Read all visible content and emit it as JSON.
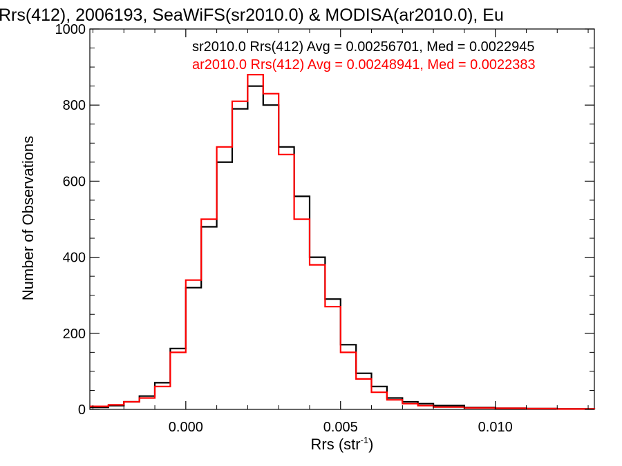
{
  "chart_data": {
    "type": "line",
    "title": "Rrs(412), 2006193, SeaWiFS(sr2010.0) & MODISA(ar2010.0), Eu",
    "xlabel_main": "Rrs (str",
    "xlabel_sup": "-1",
    "xlabel_tail": ")",
    "ylabel": "Number of Observations",
    "xlim": [
      -0.0031,
      0.0132
    ],
    "ylim": [
      0,
      1000
    ],
    "xticks": [
      {
        "value": 0.0,
        "label": "0.000"
      },
      {
        "value": 0.005,
        "label": "0.005"
      },
      {
        "value": 0.01,
        "label": "0.010"
      }
    ],
    "yticks": [
      {
        "value": 0,
        "label": "0"
      },
      {
        "value": 200,
        "label": "200"
      },
      {
        "value": 400,
        "label": "400"
      },
      {
        "value": 600,
        "label": "600"
      },
      {
        "value": 800,
        "label": "800"
      },
      {
        "value": 1000,
        "label": "1000"
      }
    ],
    "annotations": [
      {
        "text": "sr2010.0 Rrs(412) Avg = 0.00256701, Med = 0.0022945",
        "color": "#000000"
      },
      {
        "text": "ar2010.0 Rrs(412) Avg = 0.00248941, Med = 0.0022383",
        "color": "#ff0000"
      }
    ],
    "series": [
      {
        "color": "#000000",
        "x": [
          -0.0031,
          -0.0025,
          -0.002,
          -0.0015,
          -0.001,
          -0.0005,
          0.0,
          0.0005,
          0.001,
          0.0015,
          0.002,
          0.0025,
          0.003,
          0.0035,
          0.004,
          0.0045,
          0.005,
          0.0055,
          0.006,
          0.0065,
          0.007,
          0.0075,
          0.008,
          0.009,
          0.01,
          0.011,
          0.012,
          0.0132
        ],
        "y": [
          5,
          10,
          20,
          35,
          70,
          160,
          320,
          480,
          650,
          790,
          850,
          800,
          690,
          560,
          400,
          290,
          170,
          95,
          60,
          30,
          20,
          15,
          10,
          5,
          3,
          2,
          1,
          0
        ]
      },
      {
        "color": "#ff0000",
        "x": [
          -0.0031,
          -0.0025,
          -0.002,
          -0.0015,
          -0.001,
          -0.0005,
          0.0,
          0.0005,
          0.001,
          0.0015,
          0.002,
          0.0025,
          0.003,
          0.0035,
          0.004,
          0.0045,
          0.005,
          0.0055,
          0.006,
          0.0065,
          0.007,
          0.0075,
          0.008,
          0.009,
          0.01,
          0.011,
          0.012,
          0.0132
        ],
        "y": [
          8,
          12,
          20,
          30,
          60,
          150,
          340,
          500,
          690,
          810,
          880,
          830,
          670,
          500,
          380,
          270,
          150,
          80,
          45,
          25,
          15,
          10,
          6,
          4,
          3,
          2,
          1,
          0
        ]
      }
    ]
  }
}
